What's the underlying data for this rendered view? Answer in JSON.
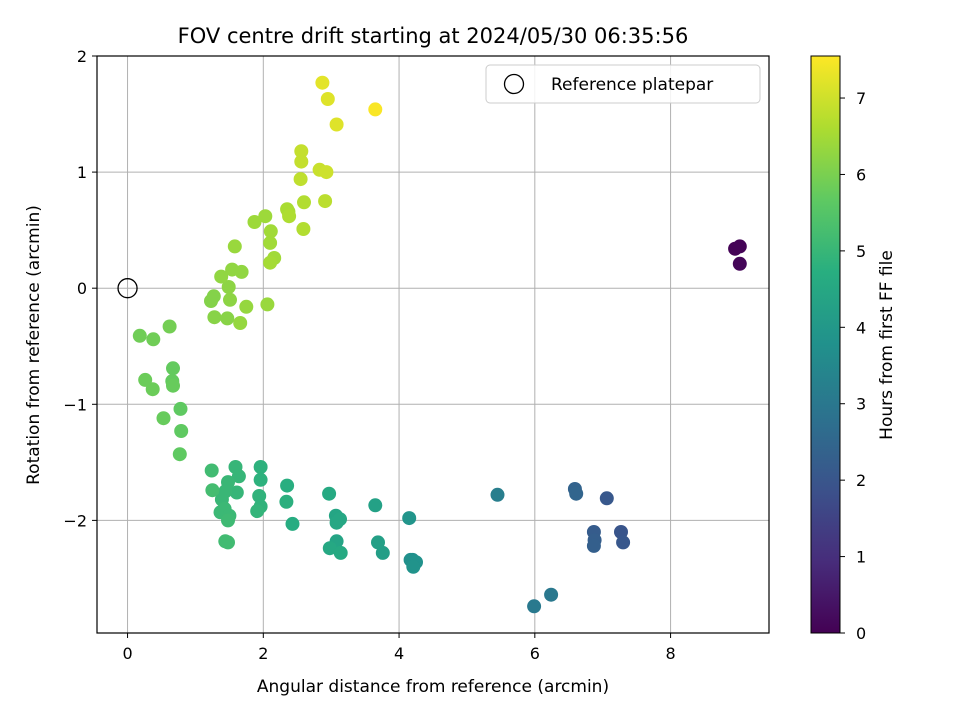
{
  "chart_data": {
    "type": "scatter",
    "title": "FOV centre drift starting at 2024/05/30 06:35:56",
    "xlabel": "Angular distance from reference (arcmin)",
    "ylabel": "Rotation from reference (arcmin)",
    "xlim": [
      -0.45,
      9.45
    ],
    "ylim": [
      -2.97,
      2.0
    ],
    "xticks": [
      0,
      2,
      4,
      6,
      8
    ],
    "yticks": [
      -2,
      -1,
      0,
      1,
      2
    ],
    "grid": true,
    "legend": {
      "location": "top-right",
      "entries": [
        "Reference platepar"
      ]
    },
    "reference_point": {
      "x": 0,
      "y": 0,
      "label": "Reference platepar"
    },
    "colorbar": {
      "label": "Hours from first FF file",
      "colormap": "viridis",
      "range": [
        0,
        7.55
      ],
      "ticks": [
        0,
        1,
        2,
        3,
        4,
        5,
        6,
        7
      ]
    },
    "points": [
      {
        "x": 8.95,
        "y": 0.34,
        "c": 0.05
      },
      {
        "x": 9.02,
        "y": 0.36,
        "c": 0.05
      },
      {
        "x": 9.02,
        "y": 0.21,
        "c": 0.1
      },
      {
        "x": 7.27,
        "y": -2.1,
        "c": 2.0
      },
      {
        "x": 7.3,
        "y": -2.19,
        "c": 2.05
      },
      {
        "x": 7.06,
        "y": -1.81,
        "c": 2.1
      },
      {
        "x": 6.87,
        "y": -2.1,
        "c": 2.2
      },
      {
        "x": 6.88,
        "y": -2.17,
        "c": 2.25
      },
      {
        "x": 6.87,
        "y": -2.22,
        "c": 2.3
      },
      {
        "x": 6.59,
        "y": -1.73,
        "c": 2.4
      },
      {
        "x": 6.61,
        "y": -1.77,
        "c": 2.45
      },
      {
        "x": 6.24,
        "y": -2.64,
        "c": 3.0
      },
      {
        "x": 5.99,
        "y": -2.74,
        "c": 3.05
      },
      {
        "x": 5.45,
        "y": -1.78,
        "c": 3.2
      },
      {
        "x": 4.2,
        "y": -2.34,
        "c": 3.7
      },
      {
        "x": 4.17,
        "y": -2.34,
        "c": 3.75
      },
      {
        "x": 4.25,
        "y": -2.36,
        "c": 3.8
      },
      {
        "x": 4.21,
        "y": -2.4,
        "c": 3.85
      },
      {
        "x": 4.15,
        "y": -1.98,
        "c": 3.9
      },
      {
        "x": 3.76,
        "y": -2.28,
        "c": 4.2
      },
      {
        "x": 3.69,
        "y": -2.19,
        "c": 4.25
      },
      {
        "x": 3.65,
        "y": -1.87,
        "c": 4.3
      },
      {
        "x": 3.08,
        "y": -2.18,
        "c": 4.4
      },
      {
        "x": 3.07,
        "y": -1.96,
        "c": 4.45
      },
      {
        "x": 3.08,
        "y": -2.02,
        "c": 4.5
      },
      {
        "x": 3.13,
        "y": -1.99,
        "c": 4.5
      },
      {
        "x": 2.98,
        "y": -2.24,
        "c": 4.55
      },
      {
        "x": 3.14,
        "y": -2.28,
        "c": 4.6
      },
      {
        "x": 2.97,
        "y": -1.77,
        "c": 4.6
      },
      {
        "x": 2.43,
        "y": -2.03,
        "c": 4.7
      },
      {
        "x": 2.35,
        "y": -1.7,
        "c": 4.75
      },
      {
        "x": 2.34,
        "y": -1.84,
        "c": 4.8
      },
      {
        "x": 1.96,
        "y": -1.54,
        "c": 4.85
      },
      {
        "x": 1.96,
        "y": -1.65,
        "c": 4.85
      },
      {
        "x": 1.94,
        "y": -1.79,
        "c": 4.9
      },
      {
        "x": 1.96,
        "y": -1.88,
        "c": 4.9
      },
      {
        "x": 1.91,
        "y": -1.92,
        "c": 4.95
      },
      {
        "x": 1.59,
        "y": -1.54,
        "c": 5.0
      },
      {
        "x": 1.64,
        "y": -1.62,
        "c": 5.0
      },
      {
        "x": 1.61,
        "y": -1.76,
        "c": 5.0
      },
      {
        "x": 1.48,
        "y": -1.67,
        "c": 5.05
      },
      {
        "x": 1.44,
        "y": -1.75,
        "c": 5.05
      },
      {
        "x": 1.39,
        "y": -1.82,
        "c": 5.05
      },
      {
        "x": 1.37,
        "y": -1.93,
        "c": 5.1
      },
      {
        "x": 1.43,
        "y": -1.9,
        "c": 5.1
      },
      {
        "x": 1.5,
        "y": -1.96,
        "c": 5.1
      },
      {
        "x": 1.48,
        "y": -2.0,
        "c": 5.15
      },
      {
        "x": 1.44,
        "y": -2.18,
        "c": 5.2
      },
      {
        "x": 1.48,
        "y": -2.19,
        "c": 5.2
      },
      {
        "x": 1.24,
        "y": -1.57,
        "c": 5.2
      },
      {
        "x": 1.25,
        "y": -1.74,
        "c": 5.25
      },
      {
        "x": 0.78,
        "y": -1.04,
        "c": 5.7
      },
      {
        "x": 0.79,
        "y": -1.23,
        "c": 5.7
      },
      {
        "x": 0.77,
        "y": -1.43,
        "c": 5.7
      },
      {
        "x": 0.67,
        "y": -0.69,
        "c": 5.75
      },
      {
        "x": 0.66,
        "y": -0.8,
        "c": 5.75
      },
      {
        "x": 0.67,
        "y": -0.84,
        "c": 5.8
      },
      {
        "x": 0.53,
        "y": -1.12,
        "c": 5.8
      },
      {
        "x": 0.37,
        "y": -0.87,
        "c": 5.85
      },
      {
        "x": 0.26,
        "y": -0.79,
        "c": 5.85
      },
      {
        "x": 0.18,
        "y": -0.41,
        "c": 5.9
      },
      {
        "x": 0.38,
        "y": -0.44,
        "c": 5.9
      },
      {
        "x": 0.62,
        "y": -0.33,
        "c": 5.95
      },
      {
        "x": 1.23,
        "y": -0.11,
        "c": 6.15
      },
      {
        "x": 1.27,
        "y": -0.07,
        "c": 6.15
      },
      {
        "x": 1.28,
        "y": -0.25,
        "c": 6.2
      },
      {
        "x": 1.47,
        "y": -0.26,
        "c": 6.2
      },
      {
        "x": 1.51,
        "y": -0.1,
        "c": 6.25
      },
      {
        "x": 1.49,
        "y": 0.01,
        "c": 6.25
      },
      {
        "x": 1.38,
        "y": 0.1,
        "c": 6.3
      },
      {
        "x": 1.54,
        "y": 0.16,
        "c": 6.3
      },
      {
        "x": 1.68,
        "y": 0.14,
        "c": 6.3
      },
      {
        "x": 1.66,
        "y": -0.3,
        "c": 6.35
      },
      {
        "x": 1.75,
        "y": -0.16,
        "c": 6.35
      },
      {
        "x": 2.06,
        "y": -0.14,
        "c": 6.4
      },
      {
        "x": 1.58,
        "y": 0.36,
        "c": 6.4
      },
      {
        "x": 1.87,
        "y": 0.57,
        "c": 6.45
      },
      {
        "x": 2.03,
        "y": 0.62,
        "c": 6.45
      },
      {
        "x": 2.11,
        "y": 0.49,
        "c": 6.5
      },
      {
        "x": 2.1,
        "y": 0.39,
        "c": 6.5
      },
      {
        "x": 2.16,
        "y": 0.26,
        "c": 6.5
      },
      {
        "x": 2.1,
        "y": 0.22,
        "c": 6.55
      },
      {
        "x": 2.35,
        "y": 0.68,
        "c": 6.6
      },
      {
        "x": 2.37,
        "y": 0.66,
        "c": 6.6
      },
      {
        "x": 2.38,
        "y": 0.62,
        "c": 6.65
      },
      {
        "x": 2.6,
        "y": 0.74,
        "c": 6.7
      },
      {
        "x": 2.59,
        "y": 0.51,
        "c": 6.7
      },
      {
        "x": 2.91,
        "y": 0.75,
        "c": 6.8
      },
      {
        "x": 2.55,
        "y": 0.94,
        "c": 6.85
      },
      {
        "x": 2.56,
        "y": 1.09,
        "c": 6.9
      },
      {
        "x": 2.56,
        "y": 1.18,
        "c": 6.9
      },
      {
        "x": 2.83,
        "y": 1.02,
        "c": 6.95
      },
      {
        "x": 2.93,
        "y": 1.0,
        "c": 7.0
      },
      {
        "x": 3.08,
        "y": 1.41,
        "c": 7.2
      },
      {
        "x": 2.95,
        "y": 1.63,
        "c": 7.2
      },
      {
        "x": 2.87,
        "y": 1.77,
        "c": 7.25
      },
      {
        "x": 3.65,
        "y": 1.54,
        "c": 7.5
      }
    ]
  }
}
